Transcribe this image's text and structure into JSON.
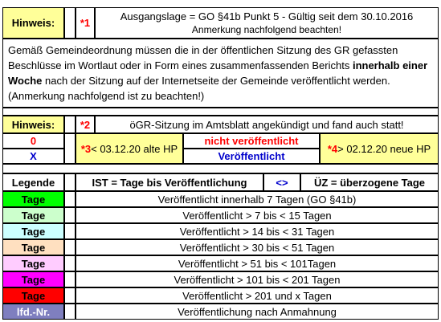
{
  "hinweis1": {
    "label": "Hinweis:",
    "marker": "*1",
    "line1": "Ausgangslage = GO §41b Punkt 5 - Gültig seit dem 30.10.2016",
    "line2": "Anmerkung nachfolgend beachten!"
  },
  "paragraph": {
    "text_a": "Gemäß Gemeindeordnung müssen die in der öffentlichen Sitzung des GR gefassten Beschlüsse im Wortlaut oder in Form eines zusammenfassenden Berichts ",
    "text_bold": "innerhalb einer Woche",
    "text_b": " nach der Sitzung auf der Internetseite der Gemeinde veröffentlicht werden. (Anmerkung nachfolgend ist zu beachten!)"
  },
  "hinweis2": {
    "label": "Hinweis:",
    "marker": "*2",
    "text": "öGR-Sitzung im Amtsblatt angekündigt und fand auch statt!"
  },
  "status": {
    "zero": "0",
    "x": "X",
    "star3_marker": "*3",
    "star3_text": " < 03.12.20 alte HP",
    "nicht": "nicht veröffentlicht",
    "veroeff": "Veröffentlicht",
    "star4_marker": "*4",
    "star4_text": " > 02.12.20 neue HP"
  },
  "legend_header": {
    "legende": "Legende",
    "ist": "IST =  Tage bis Veröffentlichung",
    "arrows": "<>",
    "uez": "ÜZ = überzogene Tage"
  },
  "legend_rows": [
    {
      "badge": "Tage",
      "text": "Veröffentlicht innerhalb 7 Tagen (GO §41b)",
      "color": "#00ff00",
      "text_color": "#000000"
    },
    {
      "badge": "Tage",
      "text": "Veröffentlicht > 7 bis < 15 Tagen",
      "color": "#ccffcc",
      "text_color": "#000000"
    },
    {
      "badge": "Tage",
      "text": "Veröffentlicht > 14 bis < 31 Tagen",
      "color": "#ccffff",
      "text_color": "#000000"
    },
    {
      "badge": "Tage",
      "text": "Veröffentlicht > 30 bis < 51 Tagen",
      "color": "#ffe0c0",
      "text_color": "#000000"
    },
    {
      "badge": "Tage",
      "text": "Veröffentlicht > 51 bis < 101Tagen",
      "color": "#ffccff",
      "text_color": "#000000"
    },
    {
      "badge": "Tage",
      "text": "Veröffentlicht > 101 bis < 201 Tagen",
      "color": "#ff00ff",
      "text_color": "#000000"
    },
    {
      "badge": "Tage",
      "text": "Veröffentlicht >  201 und x Tagen",
      "color": "#ff0000",
      "text_color": "#000000"
    },
    {
      "badge": "lfd.-Nr.",
      "text": "Veröffentlichung nach Anmahnung",
      "color": "#7f7fbf",
      "text_color": "#ffffff"
    }
  ]
}
